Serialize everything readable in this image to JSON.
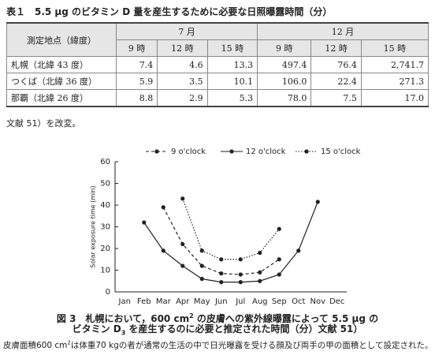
{
  "table": {
    "title": "表１　5.5 μg のビタミン D 量を産生するために必要な日照曝露時間（分）",
    "header": {
      "location": "測定地点（緯度）",
      "groups": [
        "7 月",
        "12 月"
      ],
      "hours": [
        "9 時",
        "12 時",
        "15 時",
        "9 時",
        "12 時",
        "15 時"
      ]
    },
    "rows": [
      [
        "札幌（北緯 43 度）",
        "7.4",
        "4.6",
        "13.3",
        "497.4",
        "76.4",
        "2,741.7"
      ],
      [
        "つくば（北緯 36 度）",
        "5.9",
        "3.5",
        "10.1",
        "106.0",
        "22.4",
        "271.3"
      ],
      [
        "那覇（北緯 26 度）",
        "8.8",
        "2.9",
        "5.3",
        "78.0",
        "7.5",
        "17.0"
      ]
    ],
    "note": "文献 51）を改変。"
  },
  "figure": {
    "chart_data": {
      "type": "line",
      "y_label": "Solar exposure time (min)",
      "categories": [
        "Jan",
        "Feb",
        "Mar",
        "Apr",
        "May",
        "Jun",
        "Jul",
        "Aug",
        "Sep",
        "Oct",
        "Nov",
        "Dec"
      ],
      "series": [
        {
          "name": "9 o'clock",
          "color": "#222222",
          "dash": "dashed",
          "values": [
            null,
            null,
            39,
            22,
            12,
            8.5,
            8,
            9,
            15,
            null,
            null,
            null
          ]
        },
        {
          "name": "12 o'clock",
          "color": "#222222",
          "dash": "solid",
          "values": [
            null,
            32,
            19,
            12,
            6,
            4.5,
            4.5,
            5,
            8,
            19,
            41.5,
            null
          ]
        },
        {
          "name": "15 o'clock",
          "color": "#222222",
          "dash": "dotted",
          "values": [
            null,
            null,
            null,
            43,
            19,
            15,
            15,
            18,
            29,
            null,
            null,
            null
          ]
        }
      ],
      "ylim": [
        0,
        60
      ],
      "yticks": [
        0,
        10,
        20,
        30,
        40,
        50,
        60
      ],
      "grid": false
    },
    "caption_label": "図 3",
    "caption": {
      "line1": "札幌において，600 cm",
      "line1_sup": "2",
      "line1_rest": " の皮膚への紫外線曝露によって 5.5 μg の",
      "line2": "ビタミン D",
      "line2_sub": "3",
      "line2_rest": " を産生するのに必要と推定された時間（分）文献 51）"
    },
    "footnote": {
      "start": "皮膚面積600 cm",
      "sup": "2",
      "rest": "は体重70 kgの者が通常の生活の中で日光曝露を受ける顔及び両手の甲の面積として設定された。"
    }
  }
}
